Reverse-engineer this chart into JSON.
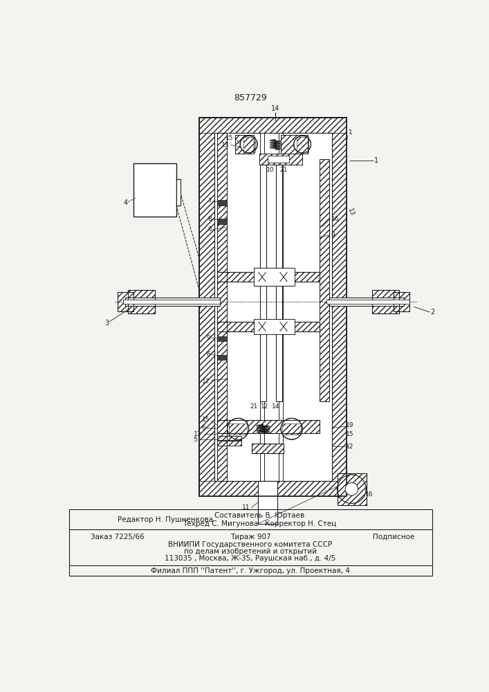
{
  "title": "857729",
  "bg": "#f5f3ef",
  "dc": "#1a1a1a",
  "footer": {
    "l1_left": "Редактор Н. Пушненкова",
    "l1_c1": "Составитель В. Юртаев",
    "l1_c2": "Техред С. Мигунова   Корректор Н. Стец",
    "l2_left": "Заказ 7225/66",
    "l2_c": "Тираж 907",
    "l2_r": "Подписное",
    "l3": "ВНИИПИ Государственного комитета СССР",
    "l4": "по делам изобретений и открытий",
    "l5": "113035 , Москва, Ж-35, Раушская наб., д. 4/5",
    "l6": "Филиал ППП ''Патент'', г. Ужгород, ул. Проектная, 4"
  }
}
